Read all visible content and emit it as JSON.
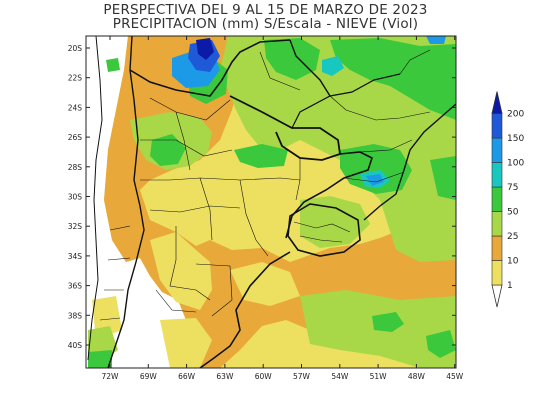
{
  "title_line1": "PERSPECTIVA DEL 9 AL 15  DE MARZO DE 2023",
  "title_line2": "PRECIPITACION (mm) S/Escala - NIEVE (Viol)",
  "lat_labels": [
    "20S",
    "22S",
    "24S",
    "26S",
    "28S",
    "30S",
    "32S",
    "34S",
    "36S",
    "38S",
    "40S"
  ],
  "lon_labels": [
    "72W",
    "69W",
    "66W",
    "63W",
    "60W",
    "57W",
    "54W",
    "51W",
    "48W",
    "45W"
  ],
  "legend_values": [
    "1",
    "10",
    "25",
    "50",
    "75",
    "100",
    "150",
    "200"
  ],
  "colors": {
    "c1_10": "#ede060",
    "c10_25": "#e8a83a",
    "c25_50": "#a8d848",
    "c50_75": "#3cc83c",
    "c75_100": "#18c8c0",
    "c100_150": "#1c9ae8",
    "c150_200": "#1e5ad8",
    "c200": "#0c1aa8",
    "no_rain": "#ffffff",
    "border": "#111111"
  }
}
